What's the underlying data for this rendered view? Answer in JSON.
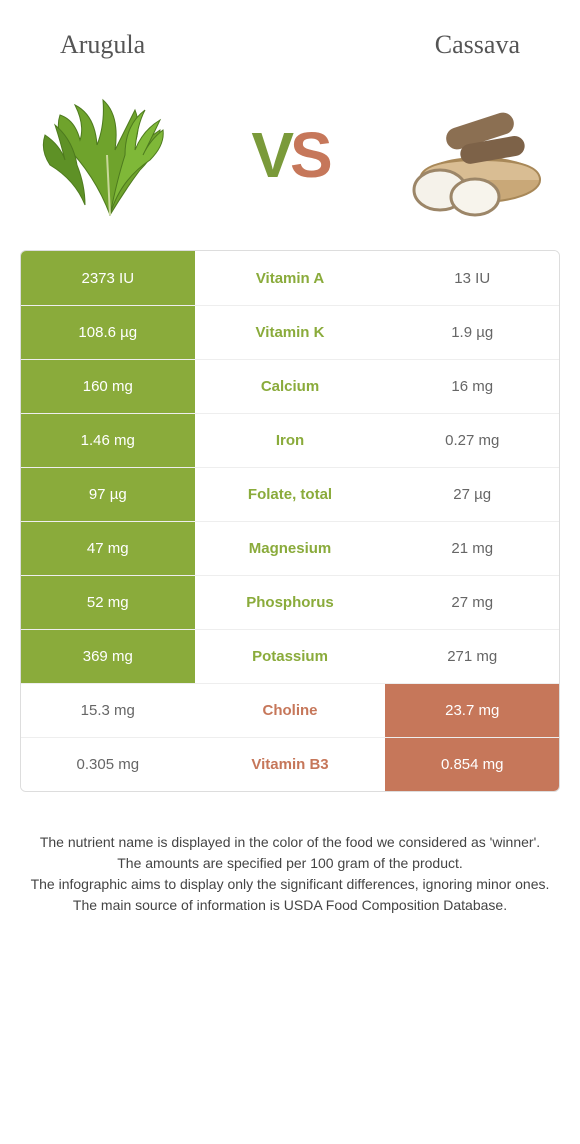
{
  "foods": {
    "left": {
      "name": "Arugula",
      "color": "#8aab3b"
    },
    "right": {
      "name": "Cassava",
      "color": "#c6775a"
    }
  },
  "vs": {
    "v_color": "#7a9a3a",
    "s_color": "#c6775a"
  },
  "table": {
    "left_winner_bg": "#8aab3b",
    "right_winner_bg": "#c6775a",
    "loser_text_color": "#666666",
    "rows": [
      {
        "label": "Vitamin A",
        "left": "2373 IU",
        "right": "13 IU",
        "winner": "left"
      },
      {
        "label": "Vitamin K",
        "left": "108.6 µg",
        "right": "1.9 µg",
        "winner": "left"
      },
      {
        "label": "Calcium",
        "left": "160 mg",
        "right": "16 mg",
        "winner": "left"
      },
      {
        "label": "Iron",
        "left": "1.46 mg",
        "right": "0.27 mg",
        "winner": "left"
      },
      {
        "label": "Folate, total",
        "left": "97 µg",
        "right": "27 µg",
        "winner": "left"
      },
      {
        "label": "Magnesium",
        "left": "47 mg",
        "right": "21 mg",
        "winner": "left"
      },
      {
        "label": "Phosphorus",
        "left": "52 mg",
        "right": "27 mg",
        "winner": "left"
      },
      {
        "label": "Potassium",
        "left": "369 mg",
        "right": "271 mg",
        "winner": "left"
      },
      {
        "label": "Choline",
        "left": "15.3 mg",
        "right": "23.7 mg",
        "winner": "right"
      },
      {
        "label": "Vitamin B3",
        "left": "0.305 mg",
        "right": "0.854 mg",
        "winner": "right"
      }
    ]
  },
  "footnotes": [
    "The nutrient name is displayed in the color of the food we considered as 'winner'.",
    "The amounts are specified per 100 gram of the product.",
    "The infographic aims to display only the significant differences, ignoring minor ones.",
    "The main source of information is USDA Food Composition Database."
  ]
}
